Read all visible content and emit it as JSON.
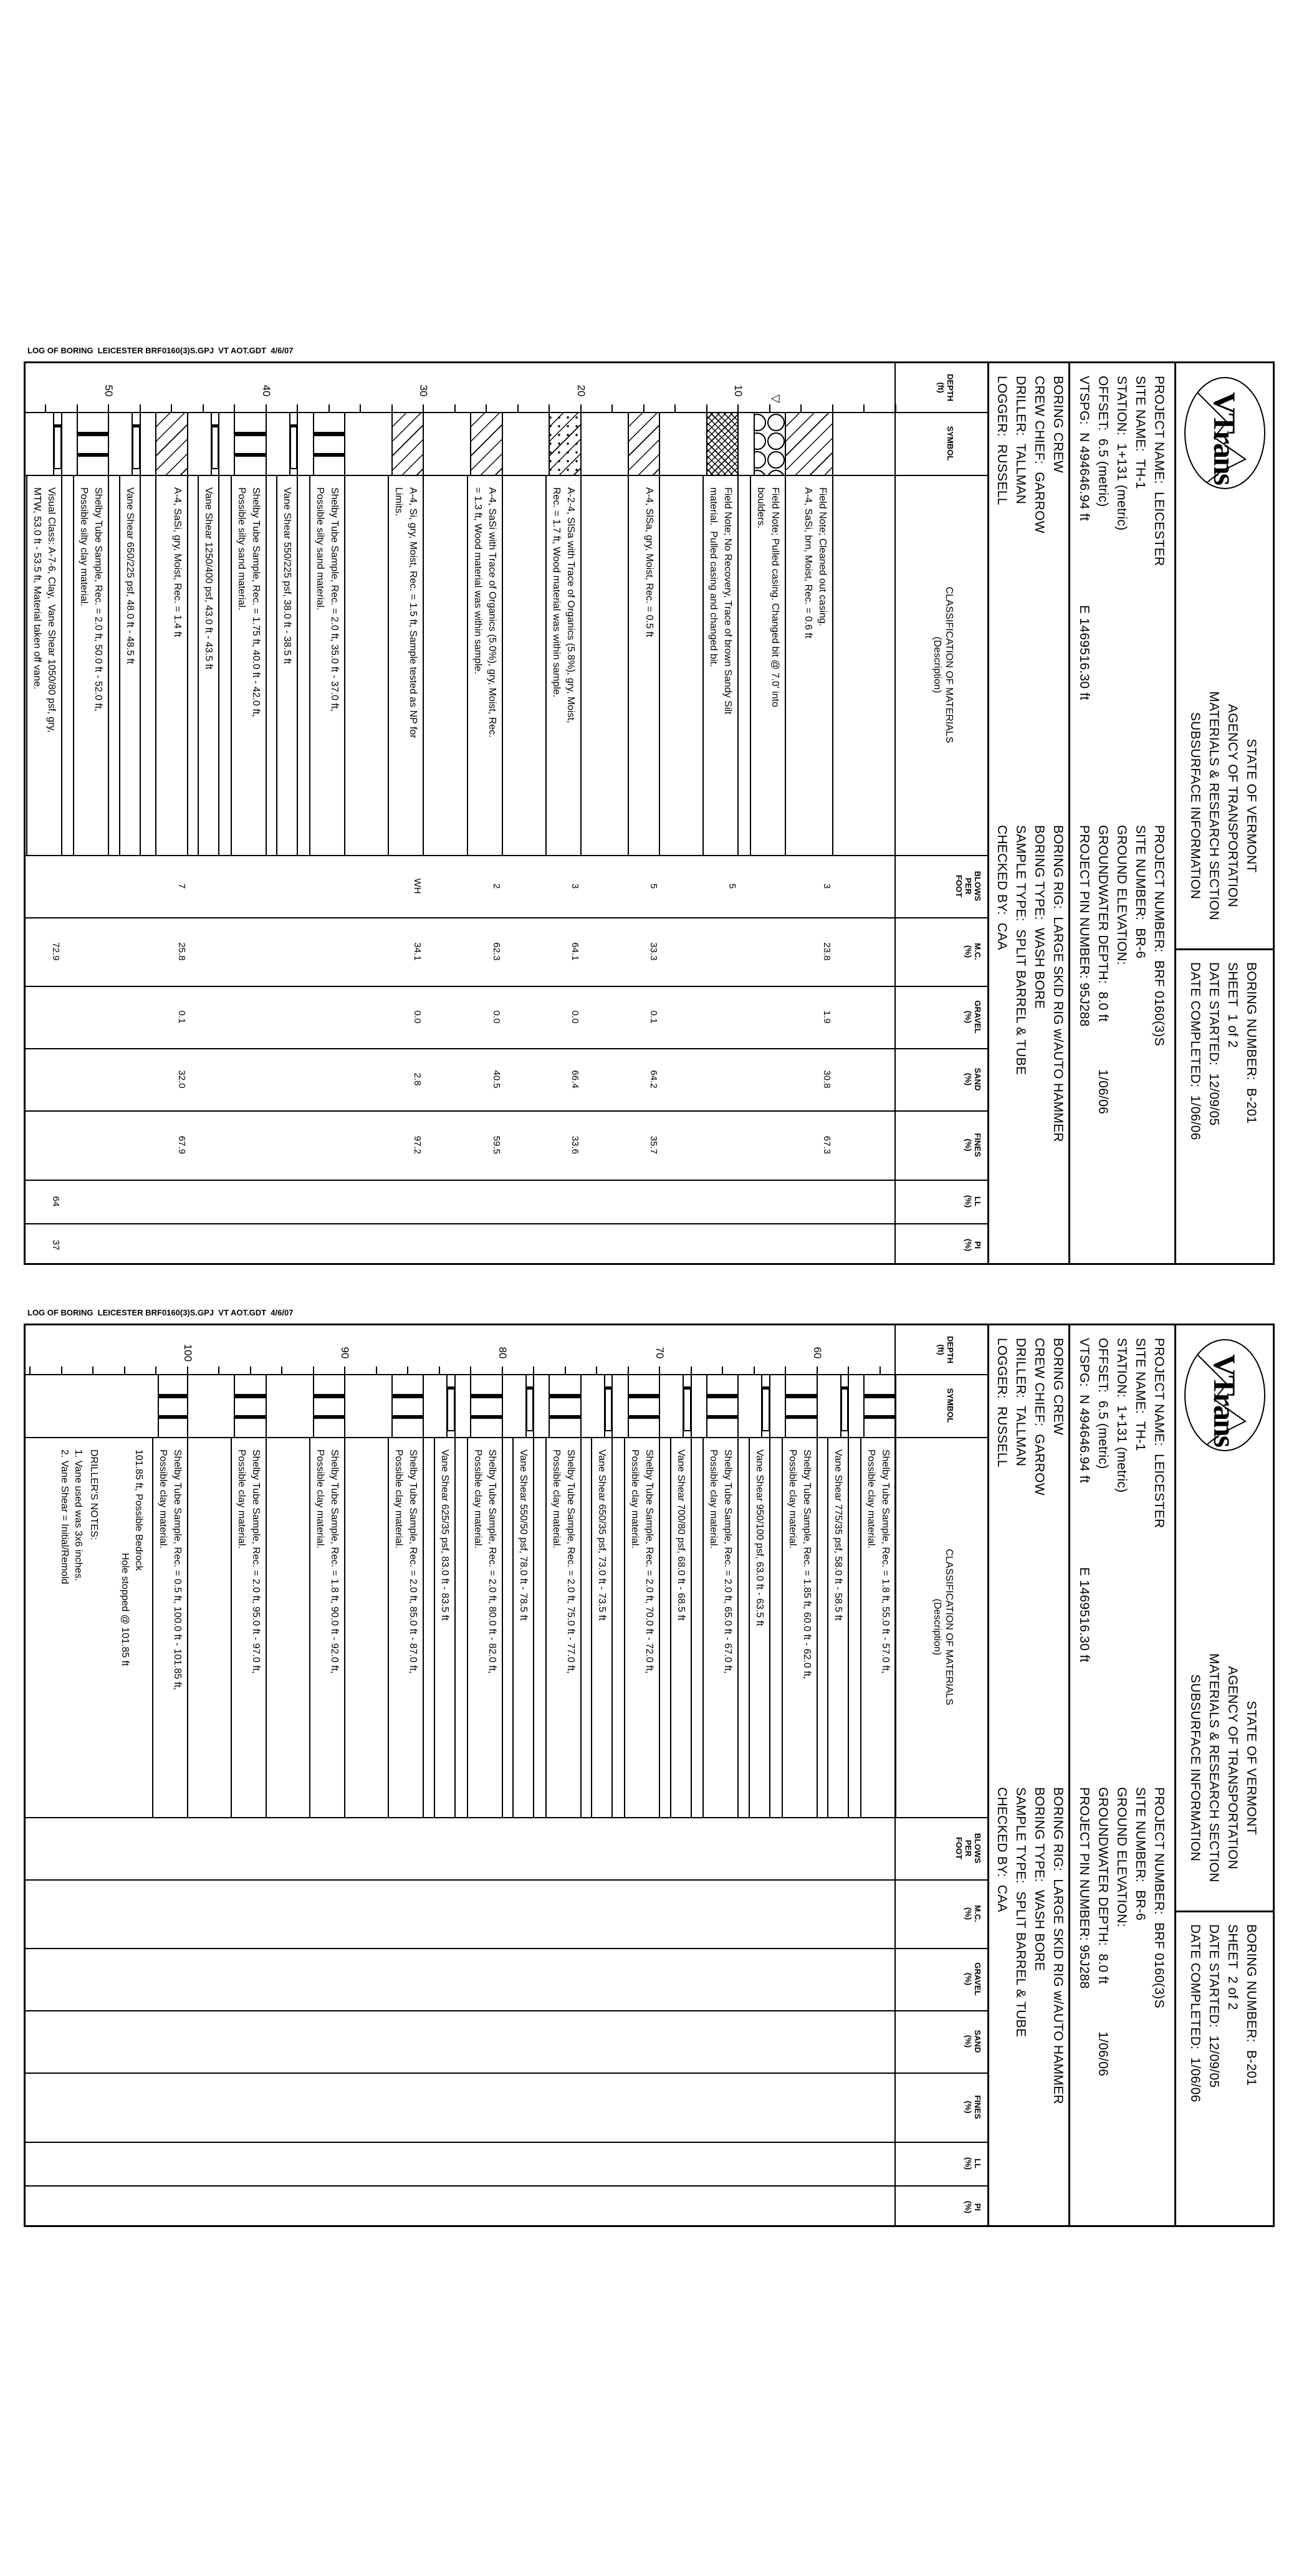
{
  "footer": "LOG OF BORING  LEICESTER BRF0160(3)S.GPJ  VT AOT.GDT  4/6/07",
  "header": {
    "logo_text": "VTrans",
    "agency_lines": [
      "STATE OF VERMONT",
      "AGENCY OF TRANSPORTATION",
      "MATERIALS & RESEARCH SECTION",
      "SUBSURFACE INFORMATION"
    ],
    "boring_number": "BORING NUMBER:  B-201",
    "date_started": "DATE STARTED:  12/09/05",
    "date_completed": "DATE COMPLETED:  1/06/06",
    "project_left": [
      "PROJECT NAME:  LEICESTER",
      "SITE NAME:  TH-1",
      "STATION:  1+131 (metric)",
      "OFFSET:  6.5 (metric)",
      "VTSPG:  N 494646.94 ft"
    ],
    "vtspg_e": "E 1469516.30 ft",
    "project_right": [
      "PROJECT NUMBER:  BRF 0160(3)S",
      "SITE NUMBER:  BR-6",
      "GROUND ELEVATION:",
      "GROUNDWATER DEPTH:  8.0 ft",
      "PROJECT PIN NUMBER: 95J288"
    ],
    "groundwater_date": "1/06/06",
    "crew_left": [
      "BORING CREW",
      "CREW CHIEF:  GARROW",
      "DRILLER:  TALLMAN",
      "LOGGER:  RUSSELL"
    ],
    "crew_right": [
      "BORING RIG:  LARGE SKID RIG w/AUTO HAMMER",
      "BORING TYPE:  WASH BORE",
      "SAMPLE TYPE:  SPLIT BARREL & TUBE",
      "CHECKED BY:  CAA"
    ]
  },
  "columns": [
    {
      "key": "depth",
      "label": [
        "DEPTH",
        "(ft)"
      ]
    },
    {
      "key": "symbol",
      "label": [
        "SYMBOL"
      ]
    },
    {
      "key": "desc",
      "label": [
        "CLASSIFICATION OF MATERIALS",
        "(Description)"
      ]
    },
    {
      "key": "blows",
      "label": [
        "BLOWS",
        "PER",
        "FOOT"
      ]
    },
    {
      "key": "mc",
      "label": [
        "M.C.",
        "(%)"
      ]
    },
    {
      "key": "gravel",
      "label": [
        "GRAVEL",
        "(%)"
      ]
    },
    {
      "key": "sand",
      "label": [
        "SAND",
        "(%)"
      ]
    },
    {
      "key": "fines",
      "label": [
        "FINES",
        "(%)"
      ]
    },
    {
      "key": "ll",
      "label": [
        "LL",
        "(%)"
      ]
    },
    {
      "key": "pi",
      "label": [
        "PI",
        "(%)"
      ]
    }
  ],
  "sheets": [
    {
      "sheet_label": "SHEET  1 of 2",
      "depth_start_ft": 0,
      "depth_labels": [
        10,
        20,
        30,
        40,
        50
      ],
      "water_level_ft": 7.6,
      "layers": [
        {
          "from": 4.0,
          "to": 7.0,
          "symbol": "hatch",
          "description": [
            "Field Note; Cleaned out casing.",
            "A-4, SaSi, brn, Moist, Rec. = 0.6 ft"
          ],
          "blows": "3",
          "mc": "23.8",
          "gravel": "1.9",
          "sand": "30.8",
          "fines": "67.3"
        },
        {
          "from": 7.0,
          "to": 9.0,
          "symbol": "boulders",
          "description": [
            "Field Note; Pulled casing. Changed bit @ 7.0' into",
            "boulders."
          ]
        },
        {
          "from": 10.0,
          "to": 12.0,
          "symbol": "crosshatch",
          "description": [
            "Field Note; No Recovery, Trace of brown Sandy Silt",
            "material.  Pulled casing and changed bit."
          ],
          "blows": "5"
        },
        {
          "from": 15.0,
          "to": 17.0,
          "symbol": "hatch",
          "description": [
            "A-4, SlSa, gry, Moist, Rec. = 0.5 ft"
          ],
          "blows": "5",
          "mc": "33.3",
          "gravel": "0.1",
          "sand": "64.2",
          "fines": "35.7"
        },
        {
          "from": 20.0,
          "to": 22.0,
          "symbol": "siltysand",
          "description": [
            "A-2-4, SlSa with Trace of Organics (5.8%), gry, Moist,",
            "Rec. = 1.7 ft, Wood material was within sample."
          ],
          "blows": "3",
          "mc": "64.1",
          "gravel": "0.0",
          "sand": "66.4",
          "fines": "33.6"
        },
        {
          "from": 25.0,
          "to": 27.0,
          "symbol": "hatch",
          "description": [
            "A-4, SaSi with Trace of Organics (5.0%), gry, Moist, Rec.",
            "= 1.3 ft, Wood material was within sample."
          ],
          "blows": "2",
          "mc": "62.3",
          "gravel": "0.0",
          "sand": "40.5",
          "fines": "59.5"
        },
        {
          "from": 30.0,
          "to": 32.0,
          "symbol": "hatch",
          "description": [
            "A-4, Si, gry, Moist, Rec. = 1.5 ft, Sample tested as NP for",
            "Limits."
          ],
          "blows": "WH",
          "mc": "34.1",
          "gravel": "0.0",
          "sand": "2.8",
          "fines": "97.2"
        },
        {
          "from": 35.0,
          "to": 37.0,
          "symbol": "shelby",
          "description": [
            "Shelby Tube Sample, Rec. = 2.0 ft, 35.0 ft - 37.0 ft,",
            "Possible silty sand material."
          ]
        },
        {
          "from": 38.0,
          "to": 38.5,
          "symbol": "vane",
          "description": [
            "Vane Shear 550/225 psf, 38.0 ft - 38.5 ft"
          ]
        },
        {
          "from": 40.0,
          "to": 42.0,
          "symbol": "shelby",
          "description": [
            "Shelby Tube Sample, Rec. = 1.75 ft, 40.0 ft - 42.0 ft,",
            "Possible silty sand material."
          ]
        },
        {
          "from": 43.0,
          "to": 43.5,
          "symbol": "vane",
          "description": [
            "Vane Shear 1250/400 psf, 43.0 ft - 43.5 ft"
          ]
        },
        {
          "from": 45.0,
          "to": 47.0,
          "symbol": "hatch",
          "description": [
            "A-4, SaSi, gry, Moist, Rec. = 1.4 ft"
          ],
          "blows": "7",
          "mc": "25.8",
          "gravel": "0.1",
          "sand": "32.0",
          "fines": "67.9"
        },
        {
          "from": 48.0,
          "to": 48.5,
          "symbol": "vane",
          "description": [
            "Vane Shear 650/225 psf, 48.0 ft - 48.5 ft"
          ]
        },
        {
          "from": 50.0,
          "to": 52.0,
          "symbol": "shelby",
          "description": [
            "Shelby Tube Sample, Rec. = 2.0 ft, 50.0 ft - 52.0 ft,",
            "Possible silty clay material."
          ]
        },
        {
          "from": 53.0,
          "to": 53.5,
          "symbol": "vane",
          "description": [
            "Visual Class: A-7-6, Clay,  Vane Shear 1050/80 psf, gry,",
            "MTW, 53.0 ft - 53.5 ft, Material taken off vane."
          ],
          "mc": "72.9",
          "ll": "64",
          "pi": "37"
        }
      ],
      "notes": []
    },
    {
      "sheet_label": "SHEET  2 of 2",
      "depth_start_ft": 55,
      "depth_labels": [
        60,
        70,
        80,
        90,
        100
      ],
      "layers": [
        {
          "from": 55.0,
          "to": 57.0,
          "symbol": "shelby",
          "description": [
            "Shelby Tube Sample, Rec. = 1.8 ft, 55.0 ft - 57.0 ft,",
            "Possible clay material."
          ]
        },
        {
          "from": 58.0,
          "to": 58.5,
          "symbol": "vane",
          "description": [
            "Vane Shear 775/35 psf, 58.0 ft - 58.5 ft"
          ]
        },
        {
          "from": 60.0,
          "to": 62.0,
          "symbol": "shelby",
          "description": [
            "Shelby Tube Sample, Rec. = 1.85 ft, 60.0 ft - 62.0 ft,",
            "Possible clay material."
          ]
        },
        {
          "from": 63.0,
          "to": 63.5,
          "symbol": "vane",
          "description": [
            "Vane Shear 950/100 psf, 63.0 ft - 63.5 ft"
          ]
        },
        {
          "from": 65.0,
          "to": 67.0,
          "symbol": "shelby",
          "description": [
            "Shelby Tube Sample, Rec. = 2.0 ft, 65.0 ft - 67.0 ft,",
            "Possible clay material."
          ]
        },
        {
          "from": 68.0,
          "to": 68.5,
          "symbol": "vane",
          "description": [
            "Vane Shear 700/80 psf, 68.0 ft - 68.5 ft"
          ]
        },
        {
          "from": 70.0,
          "to": 72.0,
          "symbol": "shelby",
          "description": [
            "Shelby Tube Sample, Rec. = 2.0 ft, 70.0 ft - 72.0 ft,",
            "Possible clay material."
          ]
        },
        {
          "from": 73.0,
          "to": 73.5,
          "symbol": "vane",
          "description": [
            "Vane Shear 650/35 psf, 73.0 ft - 73.5 ft"
          ]
        },
        {
          "from": 75.0,
          "to": 77.0,
          "symbol": "shelby",
          "description": [
            "Shelby Tube Sample, Rec. = 2.0 ft, 75.0 ft - 77.0 ft,",
            "Possible clay material."
          ]
        },
        {
          "from": 78.0,
          "to": 78.5,
          "symbol": "vane",
          "description": [
            "Vane Shear 550/50 psf, 78.0 ft - 78.5 ft"
          ]
        },
        {
          "from": 80.0,
          "to": 82.0,
          "symbol": "shelby",
          "description": [
            "Shelby Tube Sample, Rec. = 2.0 ft, 80.0 ft - 82.0 ft,",
            "Possible clay material."
          ]
        },
        {
          "from": 83.0,
          "to": 83.5,
          "symbol": "vane",
          "description": [
            "Vane Shear 625/35 psf, 83.0 ft - 83.5 ft"
          ]
        },
        {
          "from": 85.0,
          "to": 87.0,
          "symbol": "shelby",
          "description": [
            "Shelby Tube Sample, Rec. = 2.0 ft, 85.0 ft - 87.0 ft,",
            "Possible clay material."
          ]
        },
        {
          "from": 90.0,
          "to": 92.0,
          "symbol": "shelby",
          "description": [
            "Shelby Tube Sample, Rec. = 1.8 ft, 90.0 ft - 92.0 ft,",
            "Possible clay material."
          ]
        },
        {
          "from": 95.0,
          "to": 97.0,
          "symbol": "shelby",
          "description": [
            "Shelby Tube Sample, Rec. = 2.0 ft, 95.0 ft - 97.0 ft,",
            "Possible clay material."
          ]
        },
        {
          "from": 100.0,
          "to": 101.85,
          "symbol": "shelby",
          "description": [
            "Shelby Tube Sample, Rec. = 0.5 ft, 100.0 ft - 101.85 ft,",
            "Possible clay material."
          ]
        }
      ],
      "notes": [
        "101.85 ft, Possible Bedrock",
        "Hole stopped @ 101.85 ft",
        "DRILLER'S NOTES:",
        "1. Vane used was 3x6 inches.",
        "2. Vane Shear = Initial/Remold"
      ]
    }
  ]
}
